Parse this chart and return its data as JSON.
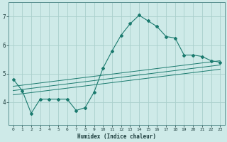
{
  "xlabel": "Humidex (Indice chaleur)",
  "ylabel": "",
  "bg_color": "#ceeae8",
  "line_color": "#1a7a6e",
  "grid_color": "#aacfcc",
  "xlim": [
    -0.5,
    23.5
  ],
  "ylim": [
    3.2,
    7.5
  ],
  "xticks": [
    0,
    1,
    2,
    3,
    4,
    5,
    6,
    7,
    8,
    9,
    10,
    11,
    12,
    13,
    14,
    15,
    16,
    17,
    18,
    19,
    20,
    21,
    22,
    23
  ],
  "yticks": [
    4,
    5,
    6,
    7
  ],
  "main_x": [
    0,
    1,
    2,
    3,
    4,
    5,
    6,
    7,
    8,
    9,
    10,
    11,
    12,
    13,
    14,
    15,
    16,
    17,
    18,
    19,
    20,
    21,
    22,
    23
  ],
  "main_y": [
    4.8,
    4.4,
    3.6,
    4.1,
    4.1,
    4.1,
    4.1,
    3.7,
    3.8,
    4.35,
    5.2,
    5.8,
    6.35,
    6.75,
    7.05,
    6.85,
    6.65,
    6.3,
    6.25,
    5.65,
    5.65,
    5.6,
    5.45,
    5.4
  ],
  "line1_x": [
    0,
    23
  ],
  "line1_y": [
    4.25,
    5.15
  ],
  "line2_x": [
    0,
    23
  ],
  "line2_y": [
    4.4,
    5.3
  ],
  "line3_x": [
    0,
    23
  ],
  "line3_y": [
    4.55,
    5.45
  ]
}
